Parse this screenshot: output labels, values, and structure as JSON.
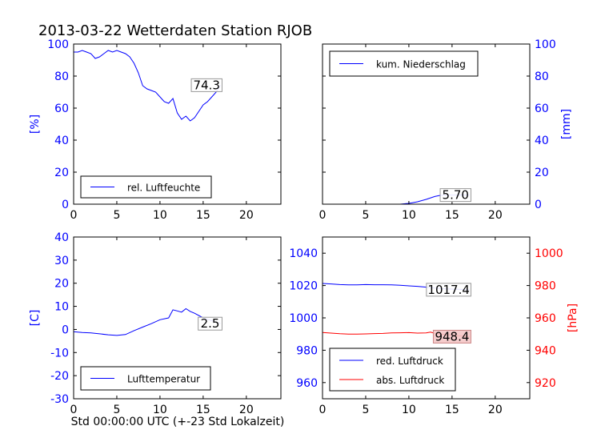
{
  "title": "2013-03-22 Wetterdaten Station RJOB",
  "footer_xlabel": "Std 00:00:00 UTC (+-23 Std Lokalzeit)",
  "colors": {
    "blue": "#0000ff",
    "red": "#ff0000",
    "black": "#000000"
  },
  "chart_data": [
    {
      "id": "humidity",
      "type": "line",
      "title": "",
      "xlabel": "",
      "ylabel": "[%]",
      "xlim": [
        0,
        24
      ],
      "ylim": [
        0,
        100
      ],
      "xticks": [
        0,
        5,
        10,
        15,
        20
      ],
      "yticks": [
        0,
        20,
        40,
        60,
        80,
        100
      ],
      "ytick_side": "left",
      "legend_position": "lower-left",
      "series": [
        {
          "name": "rel. Luftfeuchte",
          "color": "#0000ff",
          "x": [
            0,
            0.5,
            1,
            1.5,
            2,
            2.5,
            3,
            3.5,
            4,
            4.5,
            5,
            5.5,
            6,
            6.5,
            7,
            7.5,
            8,
            8.5,
            9,
            9.5,
            10,
            10.5,
            11,
            11.5,
            12,
            12.5,
            13,
            13.5,
            14,
            14.5,
            15,
            15.5,
            16,
            16.5,
            17
          ],
          "y": [
            95,
            95,
            96,
            95,
            94,
            91,
            92,
            94,
            96,
            95,
            96,
            95,
            94,
            92,
            88,
            82,
            74,
            72,
            71,
            70,
            67,
            64,
            63,
            66,
            57,
            53,
            55,
            52,
            54,
            58,
            62,
            64,
            67,
            70,
            74.3
          ]
        }
      ],
      "annotation": {
        "text": "74.3",
        "x": 17,
        "y": 74.3,
        "style": "gray-box"
      }
    },
    {
      "id": "precipitation",
      "type": "line",
      "title": "",
      "xlabel": "",
      "ylabel": "[mm]",
      "xlim": [
        0,
        24
      ],
      "ylim": [
        0,
        100
      ],
      "xticks": [
        0,
        5,
        10,
        15,
        20
      ],
      "yticks": [
        0,
        20,
        40,
        60,
        80,
        100
      ],
      "ytick_side": "right",
      "legend_position": "top-left",
      "series": [
        {
          "name": "kum. Niederschlag",
          "color": "#0000ff",
          "x": [
            0,
            9,
            10,
            11,
            12,
            13,
            13.5,
            14,
            17
          ],
          "y": [
            0,
            0,
            0.5,
            1.5,
            3.0,
            4.8,
            5.4,
            5.7,
            5.7
          ]
        }
      ],
      "annotation": {
        "text": "5.70",
        "x": 17,
        "y": 5.7,
        "style": "gray-box"
      }
    },
    {
      "id": "temperature",
      "type": "line",
      "title": "",
      "xlabel": "Std 00:00:00 UTC (+-23 Std Lokalzeit)",
      "ylabel": "[C]",
      "xlim": [
        0,
        24
      ],
      "ylim": [
        -30,
        40
      ],
      "xticks": [
        0,
        5,
        10,
        15,
        20
      ],
      "yticks": [
        -30,
        -20,
        -10,
        0,
        10,
        20,
        30,
        40
      ],
      "ytick_side": "left",
      "legend_position": "lower-left",
      "series": [
        {
          "name": "Lufttemperatur",
          "color": "#0000ff",
          "x": [
            0,
            1,
            2,
            3,
            4,
            5,
            6,
            7,
            8,
            9,
            10,
            11,
            11.5,
            12,
            12.5,
            13,
            13.5,
            14,
            15,
            16,
            17
          ],
          "y": [
            -1,
            -1.3,
            -1.5,
            -1.9,
            -2.3,
            -2.6,
            -2.2,
            -0.5,
            1.0,
            2.5,
            4.2,
            5.0,
            8.5,
            8.0,
            7.5,
            9.0,
            7.8,
            7.0,
            5.0,
            3.8,
            2.5
          ]
        }
      ],
      "annotation": {
        "text": "2.5",
        "x": 17,
        "y": 2.5,
        "style": "gray-box"
      }
    },
    {
      "id": "pressure",
      "type": "line",
      "title": "",
      "xlabel": "",
      "ylabel": "",
      "y2label": "[hPa]",
      "xlim": [
        0,
        24
      ],
      "ylim": [
        950,
        1050
      ],
      "y2lim": [
        910,
        1010
      ],
      "xticks": [
        0,
        5,
        10,
        15,
        20
      ],
      "yticks": [
        960,
        980,
        1000,
        1020,
        1040
      ],
      "y2ticks": [
        920,
        940,
        960,
        980,
        1000
      ],
      "legend_position": "lower-left",
      "series": [
        {
          "name": "red. Luftdruck",
          "color": "#0000ff",
          "axis": "left",
          "x": [
            0,
            1,
            2,
            3,
            4,
            5,
            6,
            7,
            8,
            9,
            10,
            11,
            12,
            13,
            14,
            15,
            16,
            17
          ],
          "y": [
            1021.3,
            1021.0,
            1020.6,
            1020.4,
            1020.4,
            1020.6,
            1020.5,
            1020.5,
            1020.4,
            1020.2,
            1019.8,
            1019.5,
            1019.0,
            1018.4,
            1018.0,
            1017.8,
            1017.6,
            1017.4
          ]
        },
        {
          "name": "abs. Luftdruck",
          "color": "#ff0000",
          "axis": "right",
          "x": [
            0,
            1,
            2,
            3,
            4,
            5,
            6,
            7,
            8,
            9,
            10,
            11,
            12,
            12.5,
            13,
            14,
            15,
            16,
            17
          ],
          "y": [
            951.0,
            950.6,
            950.2,
            950.0,
            950.0,
            950.1,
            950.3,
            950.4,
            950.7,
            950.8,
            950.9,
            950.6,
            950.7,
            951.2,
            950.5,
            949.8,
            949.3,
            948.8,
            948.4
          ]
        }
      ],
      "annotations": [
        {
          "text": "1017.4",
          "x": 17,
          "y": 1017.4,
          "axis": "left",
          "style": "gray-box"
        },
        {
          "text": "948.4",
          "x": 17,
          "y": 948.4,
          "axis": "right",
          "style": "red-box"
        }
      ]
    }
  ]
}
